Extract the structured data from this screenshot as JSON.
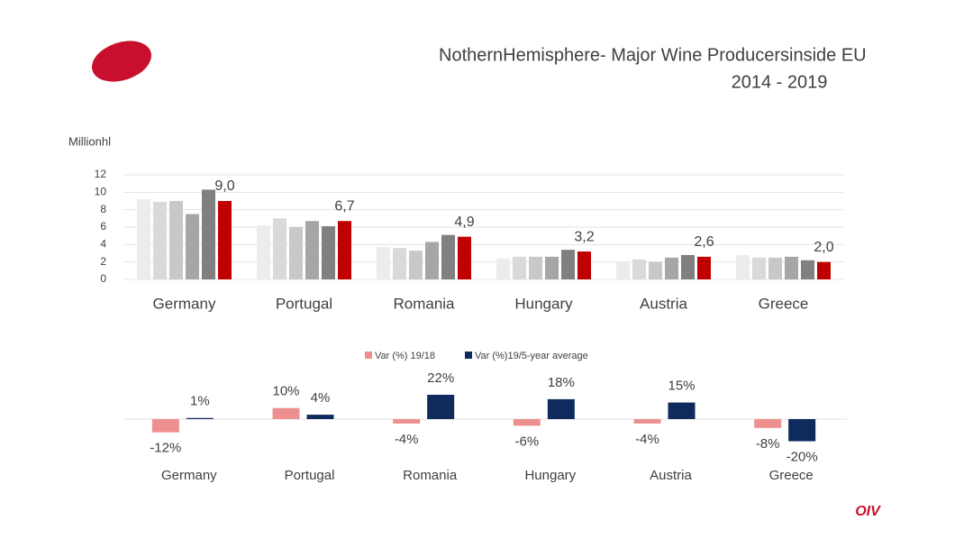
{
  "title": "NothernHemisphere- Major Wine Producersinside EU",
  "subtitle": "2014 - 2019",
  "logo": "OIV",
  "chart_data": [
    {
      "type": "bar",
      "ylabel": "Millionhl",
      "categories": [
        "Germany",
        "Portugal",
        "Romania",
        "Hungary",
        "Austria",
        "Greece"
      ],
      "series": [
        {
          "color": "#ececec",
          "values": [
            9.2,
            6.2,
            3.7,
            2.4,
            2.0,
            2.8
          ]
        },
        {
          "color": "#d9d9d9",
          "values": [
            8.9,
            7.0,
            3.6,
            2.6,
            2.3,
            2.5
          ]
        },
        {
          "color": "#c8c8c8",
          "values": [
            9.0,
            6.0,
            3.3,
            2.6,
            2.0,
            2.5
          ]
        },
        {
          "color": "#a6a6a6",
          "values": [
            7.5,
            6.7,
            4.3,
            2.6,
            2.5,
            2.6
          ]
        },
        {
          "color": "#808080",
          "values": [
            10.3,
            6.1,
            5.1,
            3.4,
            2.8,
            2.2
          ]
        },
        {
          "color": "#c00000",
          "values": [
            9.0,
            6.7,
            4.9,
            3.2,
            2.6,
            2.0
          ],
          "value_labels": [
            "9,0",
            "6,7",
            "4,9",
            "3,2",
            "2,6",
            "2,0"
          ]
        }
      ],
      "ylim": [
        0,
        12
      ],
      "yticks": [
        0,
        2,
        4,
        6,
        8,
        10,
        12
      ],
      "grid": true
    },
    {
      "type": "bar",
      "categories": [
        "Germany",
        "Portugal",
        "Romania",
        "Hungary",
        "Austria",
        "Greece"
      ],
      "series": [
        {
          "name": "Var (%) 19/18",
          "color": "#ee8f8f",
          "values": [
            -12,
            10,
            -4,
            -6,
            -4,
            -8
          ],
          "value_labels": [
            "-12%",
            "10%",
            "-4%",
            "-6%",
            "-4%",
            "-8%"
          ]
        },
        {
          "name": "Var (%)19/5-year average",
          "color": "#0f2a5c",
          "values": [
            1,
            4,
            22,
            18,
            15,
            -20
          ],
          "value_labels": [
            "1%",
            "4%",
            "22%",
            "18%",
            "15%",
            "-20%"
          ]
        }
      ],
      "legend": "top"
    }
  ]
}
